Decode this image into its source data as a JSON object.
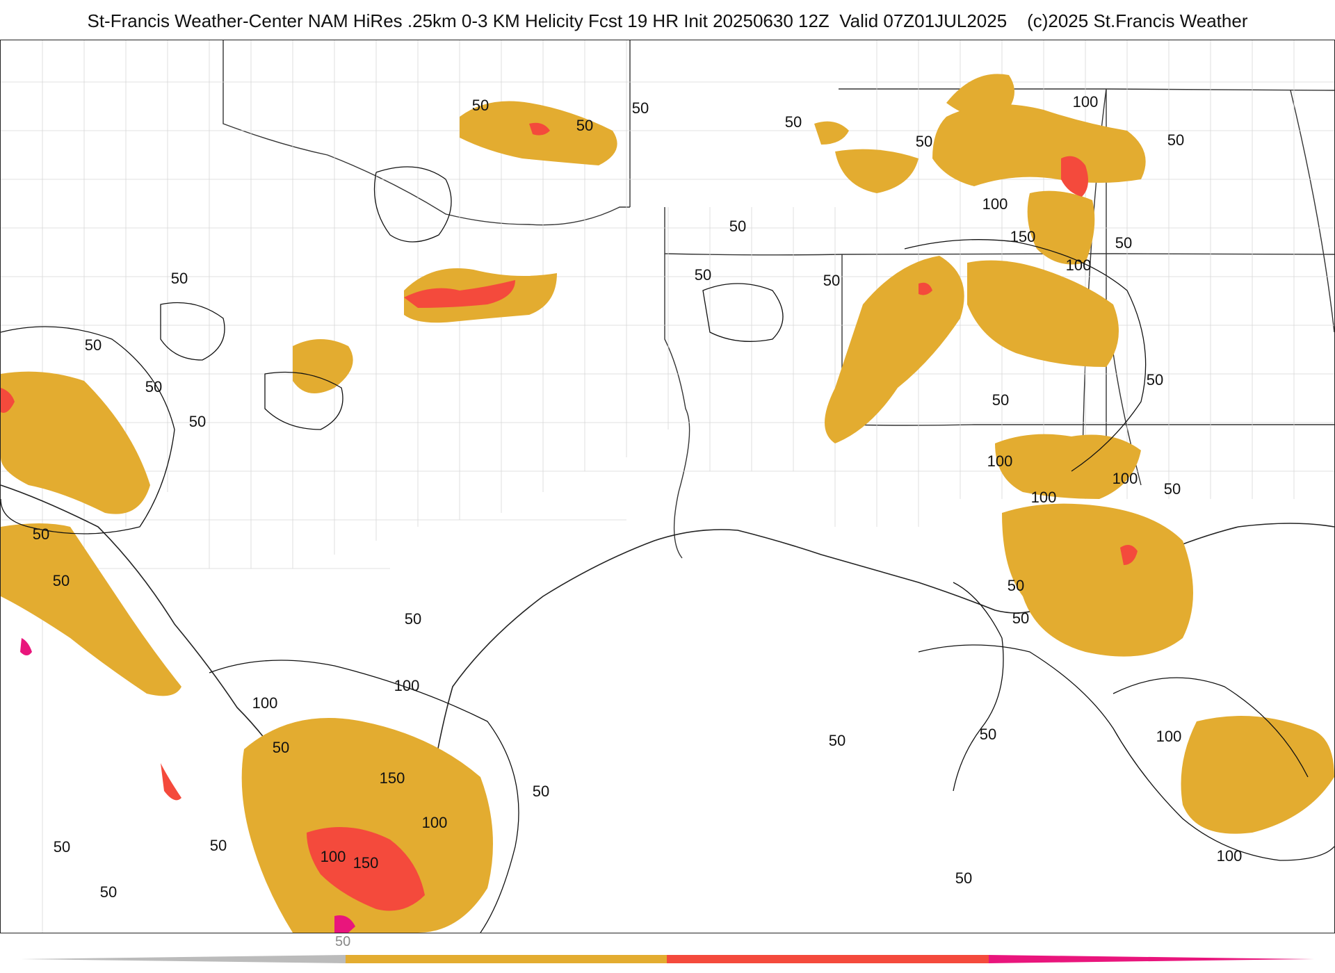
{
  "title": "St-Francis Weather-Center NAM HiRes .25km 0-3 KM Helicity Fcst 19 HR Init 20250630 12Z  Valid 07Z01JUL2025    (c)2025 St.Francis Weather",
  "map": {
    "parameter": "0-3 KM Helicity",
    "contour_labels": [
      {
        "value": "50"
      },
      {
        "value": "50"
      },
      {
        "value": "50"
      },
      {
        "value": "50"
      },
      {
        "value": "50"
      },
      {
        "value": "50"
      },
      {
        "value": "50"
      },
      {
        "value": "50"
      },
      {
        "value": "50"
      },
      {
        "value": "50"
      },
      {
        "value": "50"
      },
      {
        "value": "50"
      },
      {
        "value": "50"
      },
      {
        "value": "50"
      },
      {
        "value": "50"
      },
      {
        "value": "50"
      },
      {
        "value": "50"
      },
      {
        "value": "50"
      },
      {
        "value": "50"
      },
      {
        "value": "50"
      },
      {
        "value": "50"
      },
      {
        "value": "50"
      },
      {
        "value": "50"
      },
      {
        "value": "50"
      },
      {
        "value": "50"
      },
      {
        "value": "50"
      },
      {
        "value": "50"
      },
      {
        "value": "50"
      },
      {
        "value": "50"
      },
      {
        "value": "50"
      },
      {
        "value": "100"
      },
      {
        "value": "100"
      },
      {
        "value": "100"
      },
      {
        "value": "100"
      },
      {
        "value": "100"
      },
      {
        "value": "100"
      },
      {
        "value": "100"
      },
      {
        "value": "100"
      },
      {
        "value": "100"
      },
      {
        "value": "100"
      },
      {
        "value": "100"
      },
      {
        "value": "100"
      },
      {
        "value": "150"
      },
      {
        "value": "150"
      },
      {
        "value": "150"
      }
    ]
  },
  "colorbar": {
    "label": "50",
    "colors": {
      "gold": "#e3ac30",
      "red": "#f44a3c",
      "magenta": "#e9157c",
      "gray": "#bbbbbb"
    }
  }
}
